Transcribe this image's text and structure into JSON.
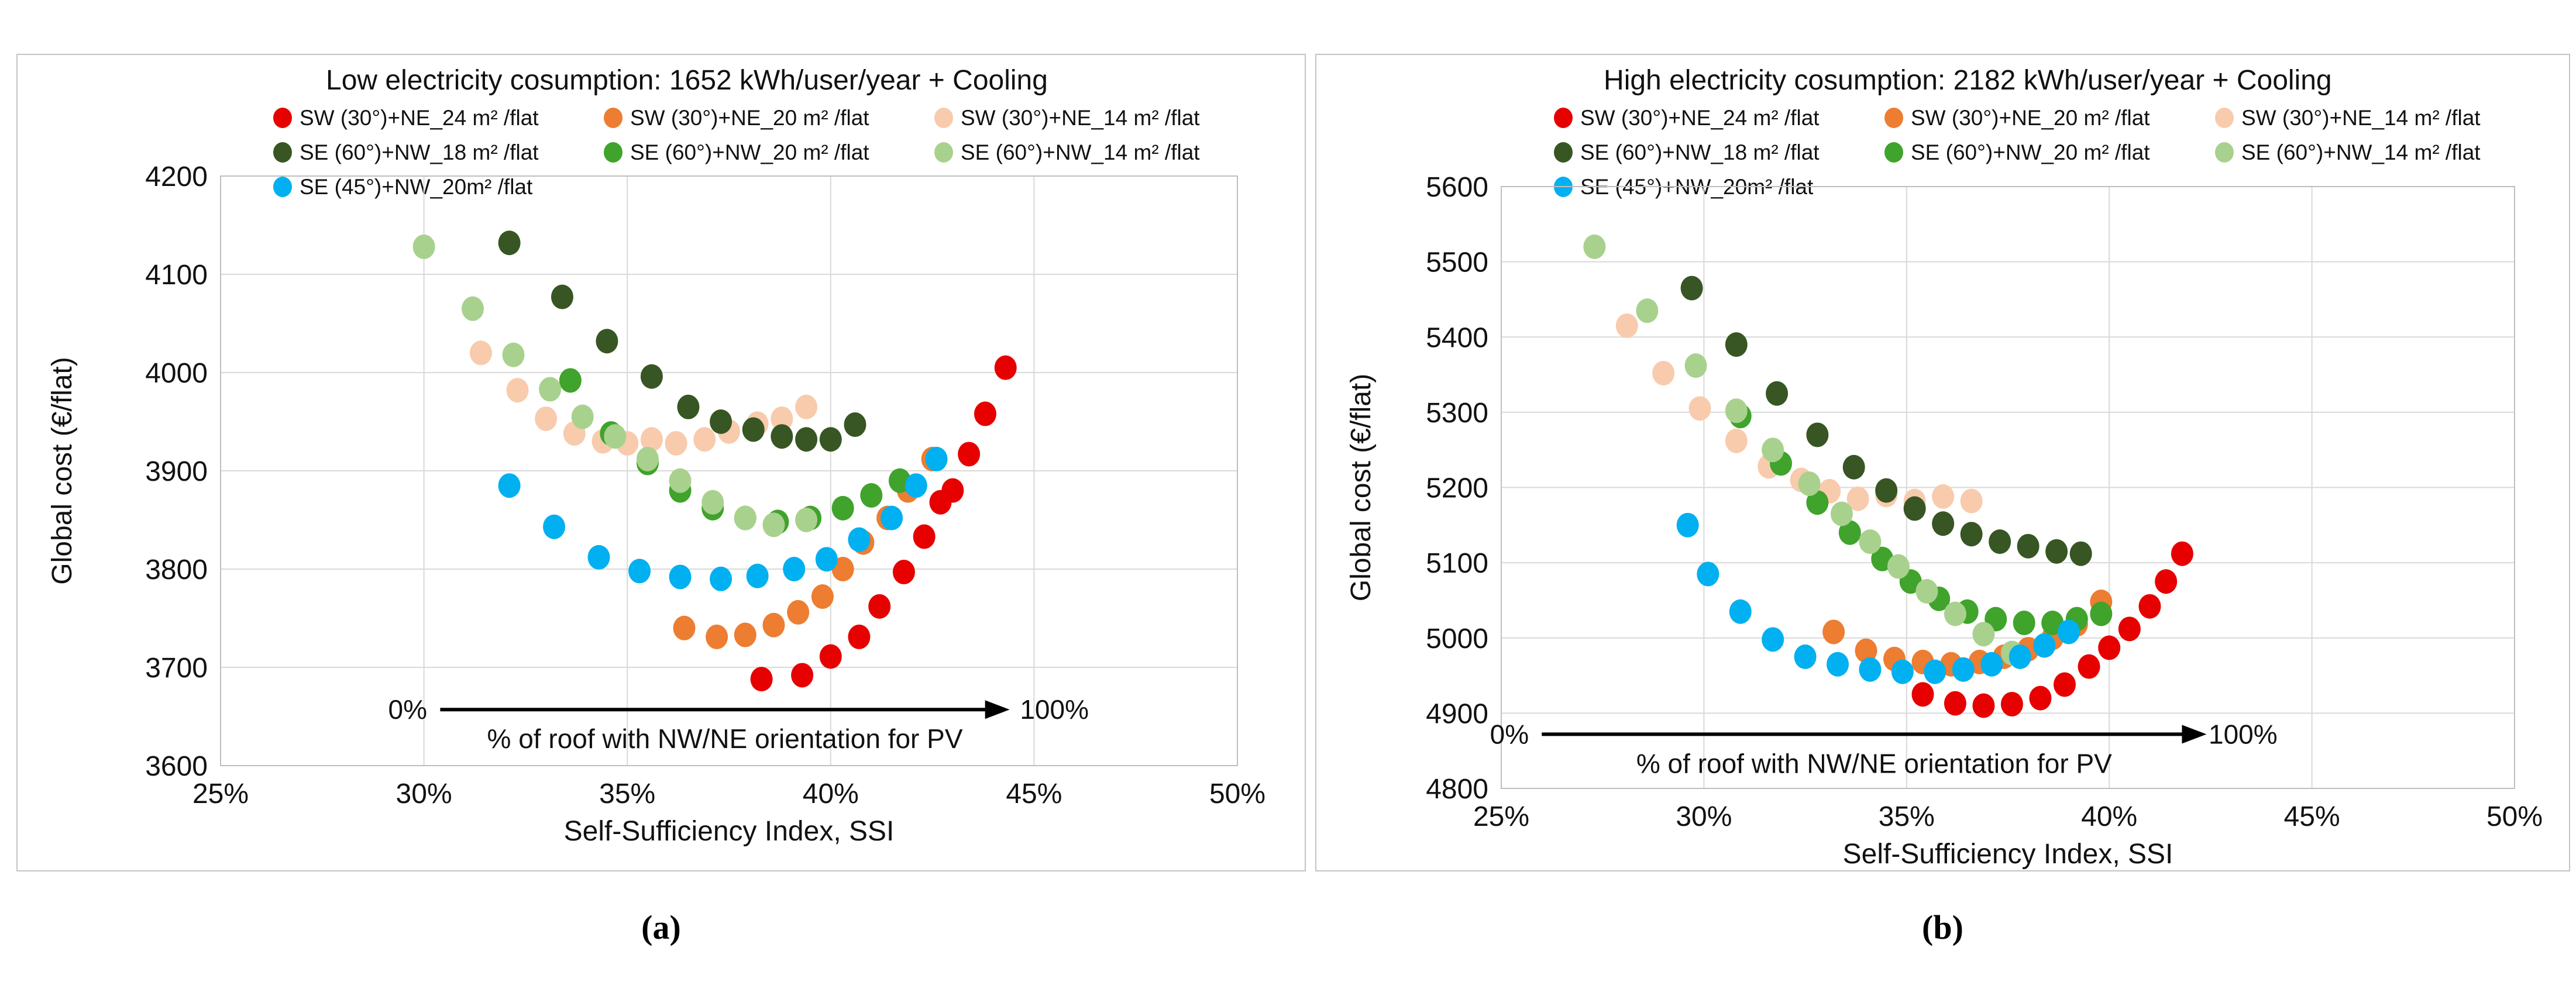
{
  "figure": {
    "caption_a": "(a)",
    "caption_b": "(b)"
  },
  "colors": {
    "gridline": "#d9d9d9",
    "plot_border": "#bfbfbf",
    "text": "#111111",
    "annotation": "#000000"
  },
  "chart_data": [
    {
      "type": "scatter",
      "title": "Low electricity cosumption: 1652 kWh/user/year + Cooling",
      "xlabel": "Self-Sufficiency Index, SSI",
      "ylabel": "Global cost (€/flat)",
      "xlim": [
        25,
        50
      ],
      "x_step": 5,
      "x_tick_suffix": "%",
      "ylim": [
        3600,
        4200
      ],
      "y_step": 100,
      "x_tick_labels": [
        "25%",
        "30%",
        "35%",
        "40%",
        "45%",
        "50%"
      ],
      "y_tick_labels": [
        "3600",
        "3700",
        "3800",
        "3900",
        "4000",
        "4100",
        "4200"
      ],
      "grid": true,
      "legend_position": "top",
      "annotation": {
        "start_label": "0%",
        "end_label": "100%",
        "text": "% of roof with NW/NE orientation for PV",
        "y": 3657,
        "line_x": [
          30.4,
          44.4
        ],
        "start_label_x": 29.6,
        "end_label_x": 45.5
      },
      "series": [
        {
          "name": "SW (30°)+NE_24 m² /flat",
          "color": "#e60000",
          "points": [
            [
              38.3,
              3688
            ],
            [
              39.3,
              3692
            ],
            [
              40.0,
              3711
            ],
            [
              40.7,
              3731
            ],
            [
              41.2,
              3762
            ],
            [
              41.8,
              3797
            ],
            [
              42.3,
              3833
            ],
            [
              42.7,
              3868
            ],
            [
              43.0,
              3880
            ],
            [
              43.4,
              3917
            ],
            [
              43.8,
              3958
            ],
            [
              44.3,
              4005
            ]
          ]
        },
        {
          "name": "SW (30°)+NE_20 m² /flat",
          "color": "#ed7d31",
          "points": [
            [
              36.4,
              3740
            ],
            [
              37.2,
              3731
            ],
            [
              37.9,
              3733
            ],
            [
              38.6,
              3743
            ],
            [
              39.2,
              3756
            ],
            [
              39.8,
              3772
            ],
            [
              40.3,
              3800
            ],
            [
              40.8,
              3827
            ],
            [
              41.4,
              3852
            ],
            [
              41.9,
              3880
            ],
            [
              42.5,
              3912
            ]
          ]
        },
        {
          "name": "SW (30°)+NE_14 m² /flat",
          "color": "#f8cbad",
          "points": [
            [
              31.4,
              4020
            ],
            [
              32.3,
              3982
            ],
            [
              33.0,
              3953
            ],
            [
              33.7,
              3938
            ],
            [
              34.4,
              3930
            ],
            [
              35.0,
              3928
            ],
            [
              35.6,
              3932
            ],
            [
              36.2,
              3928
            ],
            [
              36.9,
              3932
            ],
            [
              37.5,
              3940
            ],
            [
              38.2,
              3948
            ],
            [
              38.8,
              3953
            ],
            [
              39.4,
              3965
            ]
          ]
        },
        {
          "name": "SE (60°)+NW_18 m² /flat",
          "color": "#375623",
          "points": [
            [
              32.1,
              4132
            ],
            [
              33.4,
              4077
            ],
            [
              34.5,
              4032
            ],
            [
              35.6,
              3996
            ],
            [
              36.5,
              3965
            ],
            [
              37.3,
              3950
            ],
            [
              38.1,
              3942
            ],
            [
              38.8,
              3935
            ],
            [
              39.4,
              3932
            ],
            [
              40.0,
              3932
            ],
            [
              40.6,
              3947
            ]
          ]
        },
        {
          "name": "SE (60°)+NW_20 m² /flat",
          "color": "#3fa32c",
          "points": [
            [
              33.6,
              3992
            ],
            [
              34.6,
              3938
            ],
            [
              35.5,
              3908
            ],
            [
              36.3,
              3880
            ],
            [
              37.1,
              3862
            ],
            [
              37.9,
              3852
            ],
            [
              38.7,
              3848
            ],
            [
              39.5,
              3852
            ],
            [
              40.3,
              3862
            ],
            [
              41.0,
              3875
            ],
            [
              41.7,
              3890
            ]
          ]
        },
        {
          "name": "SE (60°)+NW_14 m² /flat",
          "color": "#a9d18e",
          "points": [
            [
              30.0,
              4128
            ],
            [
              31.2,
              4065
            ],
            [
              32.2,
              4018
            ],
            [
              33.1,
              3983
            ],
            [
              33.9,
              3955
            ],
            [
              34.7,
              3935
            ],
            [
              35.5,
              3912
            ],
            [
              36.3,
              3890
            ],
            [
              37.1,
              3868
            ],
            [
              37.9,
              3852
            ],
            [
              38.6,
              3845
            ],
            [
              39.4,
              3850
            ]
          ]
        },
        {
          "name": "SE (45°)+NW_20m² /flat",
          "color": "#00b0f0",
          "points": [
            [
              32.1,
              3885
            ],
            [
              33.2,
              3843
            ],
            [
              34.3,
              3812
            ],
            [
              35.3,
              3798
            ],
            [
              36.3,
              3792
            ],
            [
              37.3,
              3790
            ],
            [
              38.2,
              3793
            ],
            [
              39.1,
              3800
            ],
            [
              39.9,
              3810
            ],
            [
              40.7,
              3830
            ],
            [
              41.5,
              3852
            ],
            [
              42.1,
              3885
            ],
            [
              42.6,
              3912
            ]
          ]
        }
      ]
    },
    {
      "type": "scatter",
      "title": "High electricity cosumption: 2182 kWh/user/year + Cooling",
      "xlabel": "Self-Sufficiency Index, SSI",
      "ylabel": "Global cost (€/flat)",
      "xlim": [
        25,
        50
      ],
      "x_step": 5,
      "x_tick_suffix": "%",
      "ylim": [
        4800,
        5600
      ],
      "y_step": 100,
      "x_tick_labels": [
        "25%",
        "30%",
        "35%",
        "40%",
        "45%",
        "50%"
      ],
      "y_tick_labels": [
        "4800",
        "4900",
        "5000",
        "5100",
        "5200",
        "5300",
        "5400",
        "5500",
        "5600"
      ],
      "grid": true,
      "legend_position": "top",
      "annotation": {
        "start_label": "0%",
        "end_label": "100%",
        "text": "% of roof with NW/NE orientation for PV",
        "y": 4872,
        "line_x": [
          26.0,
          42.4
        ],
        "start_label_x": 25.2,
        "end_label_x": 43.3
      },
      "series": [
        {
          "name": "SW (30°)+NE_24 m² /flat",
          "color": "#e60000",
          "points": [
            [
              35.4,
              4925
            ],
            [
              36.2,
              4913
            ],
            [
              36.9,
              4910
            ],
            [
              37.6,
              4912
            ],
            [
              38.3,
              4920
            ],
            [
              38.9,
              4938
            ],
            [
              39.5,
              4962
            ],
            [
              40.0,
              4987
            ],
            [
              40.5,
              5012
            ],
            [
              41.0,
              5042
            ],
            [
              41.4,
              5075
            ],
            [
              41.8,
              5112
            ]
          ]
        },
        {
          "name": "SW (30°)+NE_20 m² /flat",
          "color": "#ed7d31",
          "points": [
            [
              33.2,
              5008
            ],
            [
              34.0,
              4983
            ],
            [
              34.7,
              4972
            ],
            [
              35.4,
              4968
            ],
            [
              36.1,
              4965
            ],
            [
              36.8,
              4968
            ],
            [
              37.4,
              4975
            ],
            [
              38.0,
              4985
            ],
            [
              38.6,
              5000
            ],
            [
              39.2,
              5018
            ],
            [
              39.8,
              5048
            ]
          ]
        },
        {
          "name": "SW (30°)+NE_14 m² /flat",
          "color": "#f8cbad",
          "points": [
            [
              28.1,
              5415
            ],
            [
              29.0,
              5352
            ],
            [
              29.9,
              5305
            ],
            [
              30.8,
              5262
            ],
            [
              31.6,
              5228
            ],
            [
              32.4,
              5210
            ],
            [
              33.1,
              5195
            ],
            [
              33.8,
              5185
            ],
            [
              34.5,
              5190
            ],
            [
              35.2,
              5182
            ],
            [
              35.9,
              5188
            ],
            [
              36.6,
              5182
            ]
          ]
        },
        {
          "name": "SE (60°)+NW_18 m² /flat",
          "color": "#375623",
          "points": [
            [
              29.7,
              5465
            ],
            [
              30.8,
              5390
            ],
            [
              31.8,
              5325
            ],
            [
              32.8,
              5270
            ],
            [
              33.7,
              5227
            ],
            [
              34.5,
              5196
            ],
            [
              35.2,
              5172
            ],
            [
              35.9,
              5152
            ],
            [
              36.6,
              5138
            ],
            [
              37.3,
              5128
            ],
            [
              38.0,
              5122
            ],
            [
              38.7,
              5115
            ],
            [
              39.3,
              5112
            ]
          ]
        },
        {
          "name": "SE (60°)+NW_20 m² /flat",
          "color": "#3fa32c",
          "points": [
            [
              30.9,
              5295
            ],
            [
              31.9,
              5232
            ],
            [
              32.8,
              5180
            ],
            [
              33.6,
              5140
            ],
            [
              34.4,
              5105
            ],
            [
              35.1,
              5075
            ],
            [
              35.8,
              5052
            ],
            [
              36.5,
              5035
            ],
            [
              37.2,
              5025
            ],
            [
              37.9,
              5020
            ],
            [
              38.6,
              5020
            ],
            [
              39.2,
              5025
            ],
            [
              39.8,
              5032
            ]
          ]
        },
        {
          "name": "SE (60°)+NW_14 m² /flat",
          "color": "#a9d18e",
          "points": [
            [
              27.3,
              5520
            ],
            [
              28.6,
              5435
            ],
            [
              29.8,
              5362
            ],
            [
              30.8,
              5302
            ],
            [
              31.7,
              5250
            ],
            [
              32.6,
              5205
            ],
            [
              33.4,
              5165
            ],
            [
              34.1,
              5128
            ],
            [
              34.8,
              5095
            ],
            [
              35.5,
              5062
            ],
            [
              36.2,
              5032
            ],
            [
              36.9,
              5005
            ],
            [
              37.6,
              4980
            ]
          ]
        },
        {
          "name": "SE (45°)+NW_20m² /flat",
          "color": "#00b0f0",
          "points": [
            [
              29.6,
              5150
            ],
            [
              30.1,
              5085
            ],
            [
              30.9,
              5035
            ],
            [
              31.7,
              4998
            ],
            [
              32.5,
              4975
            ],
            [
              33.3,
              4965
            ],
            [
              34.1,
              4958
            ],
            [
              34.9,
              4955
            ],
            [
              35.7,
              4955
            ],
            [
              36.4,
              4958
            ],
            [
              37.1,
              4965
            ],
            [
              37.8,
              4975
            ],
            [
              38.4,
              4990
            ],
            [
              39.0,
              5008
            ]
          ]
        }
      ]
    }
  ]
}
